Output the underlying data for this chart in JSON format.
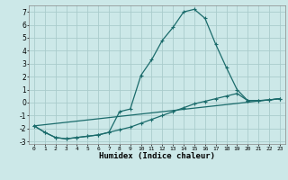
{
  "xlabel": "Humidex (Indice chaleur)",
  "bg_color": "#cce8e8",
  "grid_color": "#aacccc",
  "line_color": "#1a6b6b",
  "xlim": [
    -0.5,
    23.5
  ],
  "ylim": [
    -3.2,
    7.5
  ],
  "yticks": [
    -3,
    -2,
    -1,
    0,
    1,
    2,
    3,
    4,
    5,
    6,
    7
  ],
  "xticks": [
    0,
    1,
    2,
    3,
    4,
    5,
    6,
    7,
    8,
    9,
    10,
    11,
    12,
    13,
    14,
    15,
    16,
    17,
    18,
    19,
    20,
    21,
    22,
    23
  ],
  "line1_x": [
    0,
    1,
    2,
    3,
    4,
    5,
    6,
    7,
    8,
    9,
    10,
    11,
    12,
    13,
    14,
    15,
    16,
    17,
    18,
    19,
    20,
    21,
    22,
    23
  ],
  "line1_y": [
    -1.8,
    -2.3,
    -2.7,
    -2.8,
    -2.7,
    -2.6,
    -2.5,
    -2.3,
    -2.1,
    -1.9,
    -1.6,
    -1.3,
    -1.0,
    -0.7,
    -0.4,
    -0.1,
    0.1,
    0.3,
    0.5,
    0.7,
    0.15,
    0.15,
    0.2,
    0.3
  ],
  "line2_x": [
    0,
    1,
    2,
    3,
    4,
    5,
    6,
    7,
    8,
    9,
    10,
    11,
    12,
    13,
    14,
    15,
    16,
    17,
    18,
    19,
    20,
    21,
    22,
    23
  ],
  "line2_y": [
    -1.8,
    -2.3,
    -2.7,
    -2.8,
    -2.7,
    -2.6,
    -2.5,
    -2.3,
    -0.7,
    -0.5,
    2.1,
    3.3,
    4.8,
    5.8,
    7.0,
    7.2,
    6.5,
    4.5,
    2.7,
    1.0,
    0.15,
    0.15,
    0.2,
    0.3
  ],
  "line3_x": [
    0,
    23
  ],
  "line3_y": [
    -1.8,
    0.3
  ]
}
